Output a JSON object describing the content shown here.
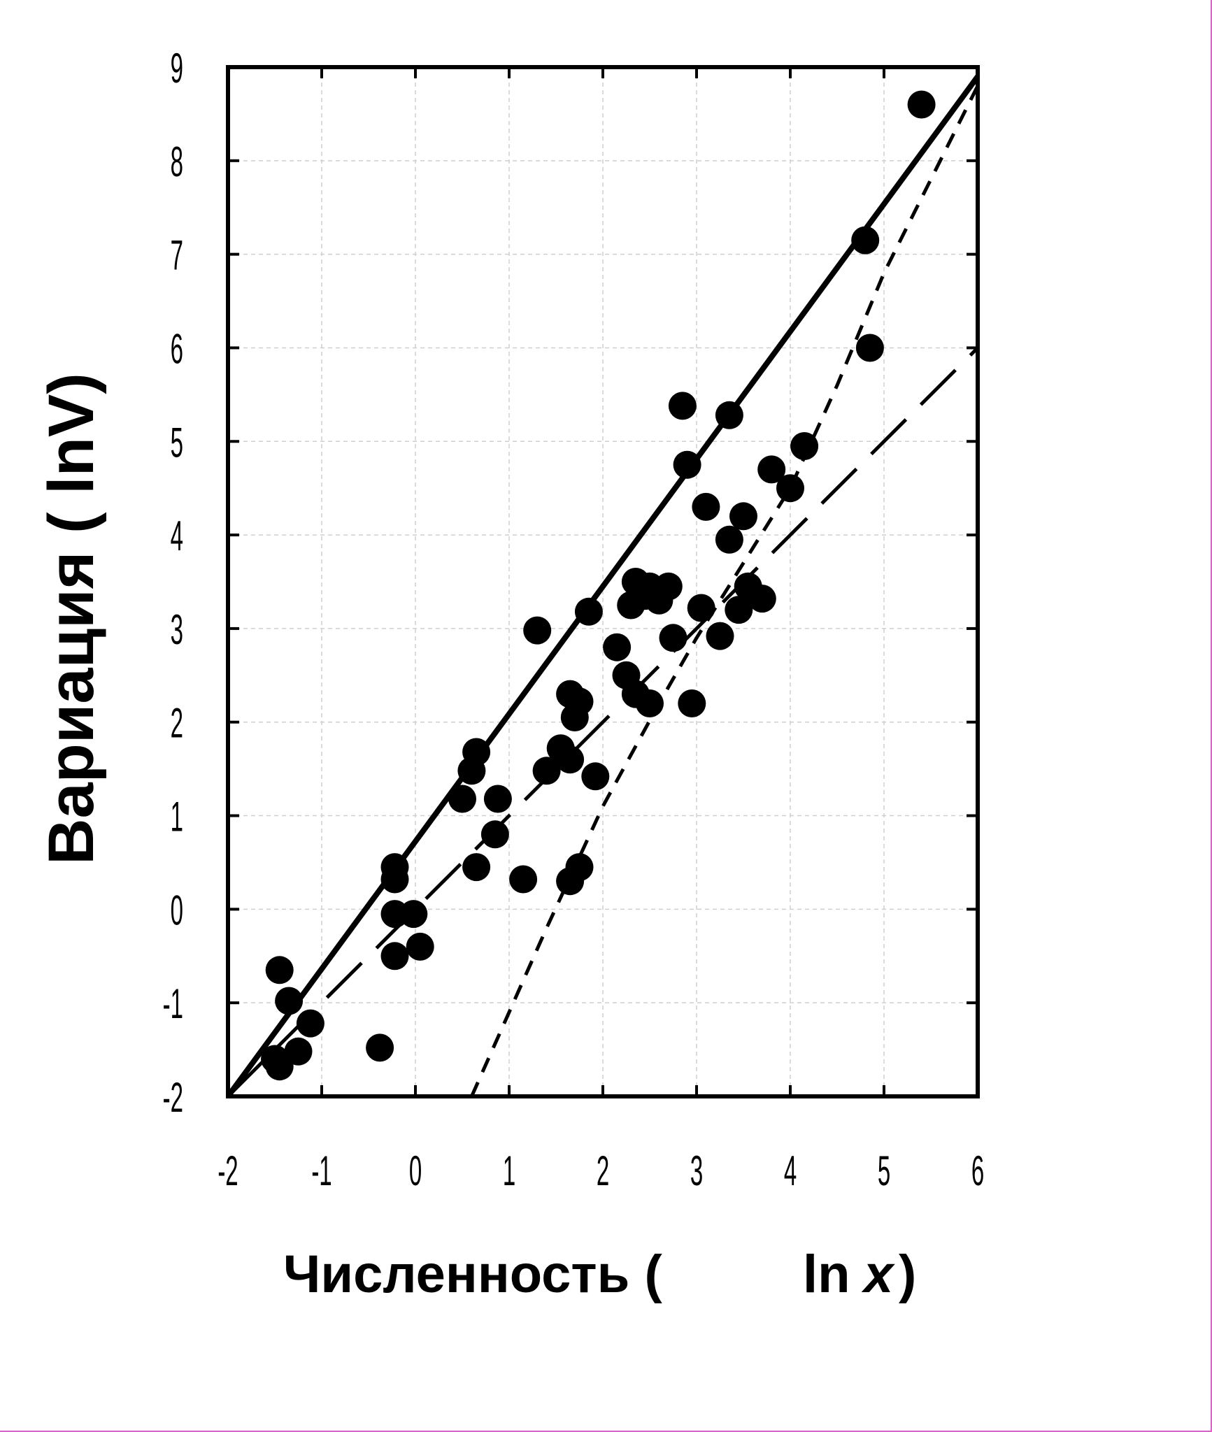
{
  "chart_data": {
    "type": "scatter",
    "title": "",
    "xlabel_parts": [
      "Численность (",
      "ln",
      "x",
      ")"
    ],
    "ylabel": "Вариация  ( lnV)",
    "xlim": [
      -2,
      6
    ],
    "ylim": [
      -2,
      9
    ],
    "x_ticks": [
      "-2",
      "-1",
      "0",
      "1",
      "2",
      "3",
      "4",
      "5",
      "6"
    ],
    "y_ticks": [
      "-2",
      "-1",
      "0",
      "1",
      "2",
      "3",
      "4",
      "5",
      "6",
      "7",
      "8",
      "9"
    ],
    "grid": true,
    "points": [
      [
        -1.45,
        -0.65
      ],
      [
        -1.35,
        -0.98
      ],
      [
        -1.12,
        -1.22
      ],
      [
        -1.5,
        -1.6
      ],
      [
        -1.45,
        -1.68
      ],
      [
        -1.25,
        -1.52
      ],
      [
        -0.38,
        -1.48
      ],
      [
        -0.22,
        0.45
      ],
      [
        -0.22,
        0.32
      ],
      [
        -0.22,
        -0.05
      ],
      [
        -0.22,
        -0.5
      ],
      [
        -0.02,
        -0.05
      ],
      [
        0.05,
        -0.4
      ],
      [
        0.5,
        1.18
      ],
      [
        0.6,
        1.48
      ],
      [
        0.65,
        1.68
      ],
      [
        0.65,
        0.45
      ],
      [
        0.85,
        0.8
      ],
      [
        0.88,
        1.18
      ],
      [
        1.15,
        0.32
      ],
      [
        1.3,
        2.98
      ],
      [
        1.4,
        1.48
      ],
      [
        1.55,
        1.72
      ],
      [
        1.65,
        1.6
      ],
      [
        1.65,
        2.3
      ],
      [
        1.7,
        2.05
      ],
      [
        1.75,
        2.22
      ],
      [
        1.65,
        0.3
      ],
      [
        1.75,
        0.45
      ],
      [
        1.85,
        3.18
      ],
      [
        1.92,
        1.42
      ],
      [
        2.15,
        2.8
      ],
      [
        2.25,
        2.5
      ],
      [
        2.3,
        3.25
      ],
      [
        2.35,
        3.5
      ],
      [
        2.35,
        2.3
      ],
      [
        2.45,
        3.35
      ],
      [
        2.5,
        3.45
      ],
      [
        2.5,
        2.2
      ],
      [
        2.6,
        3.3
      ],
      [
        2.7,
        3.45
      ],
      [
        2.75,
        2.9
      ],
      [
        2.85,
        5.38
      ],
      [
        2.9,
        4.75
      ],
      [
        2.95,
        2.2
      ],
      [
        3.05,
        3.22
      ],
      [
        3.1,
        4.3
      ],
      [
        3.25,
        2.92
      ],
      [
        3.35,
        3.95
      ],
      [
        3.35,
        5.28
      ],
      [
        3.45,
        3.2
      ],
      [
        3.5,
        4.2
      ],
      [
        3.55,
        3.45
      ],
      [
        3.7,
        3.32
      ],
      [
        3.8,
        4.7
      ],
      [
        4.0,
        4.5
      ],
      [
        4.15,
        4.95
      ],
      [
        4.8,
        7.15
      ],
      [
        4.85,
        6.0
      ],
      [
        5.4,
        8.6
      ]
    ],
    "lines": [
      {
        "style": "solid",
        "width": 8,
        "x": [
          -2,
          6
        ],
        "y": [
          -2,
          8.9
        ]
      },
      {
        "style": "short-dash",
        "width": 5,
        "x": [
          0.6,
          1.0,
          1.4,
          2.0,
          2.6,
          3.0,
          3.5,
          4.0,
          4.5,
          5.0,
          5.5,
          6.0
        ],
        "y": [
          -2,
          -1.1,
          -0.2,
          1.1,
          2.2,
          2.9,
          3.7,
          4.5,
          5.6,
          6.8,
          7.8,
          8.8
        ]
      },
      {
        "style": "long-dash",
        "width": 5,
        "x": [
          -2,
          4.0,
          6
        ],
        "y": [
          -2,
          4.0,
          6.0
        ]
      }
    ]
  }
}
